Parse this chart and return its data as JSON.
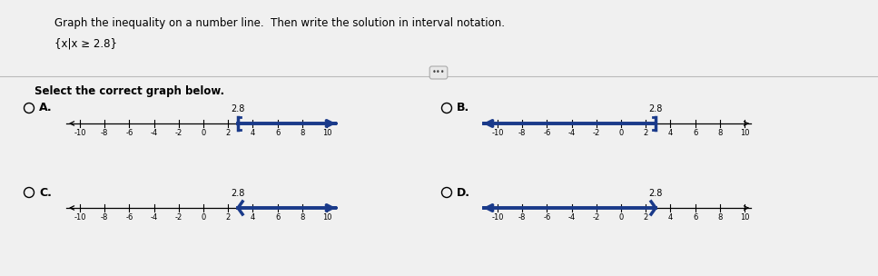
{
  "title_text": "Graph the inequality on a number line.  Then write the solution in interval notation.",
  "set_notation": "{x|x ≥ 2.8}",
  "select_text": "Select the correct graph below.",
  "background_color": "#f0f0f0",
  "panel_color": "#ffffff",
  "number_line_color": "#000000",
  "highlight_color": "#1a3a8a",
  "tick_min": -10,
  "tick_max": 10,
  "tick_step": 2,
  "point": 2.8,
  "graphs": [
    {
      "label": "A.",
      "direction": "right",
      "bracket": "closed"
    },
    {
      "label": "B.",
      "direction": "left",
      "bracket": "closed"
    },
    {
      "label": "C.",
      "direction": "right",
      "bracket": "open"
    },
    {
      "label": "D.",
      "direction": "left",
      "bracket": "open"
    }
  ]
}
